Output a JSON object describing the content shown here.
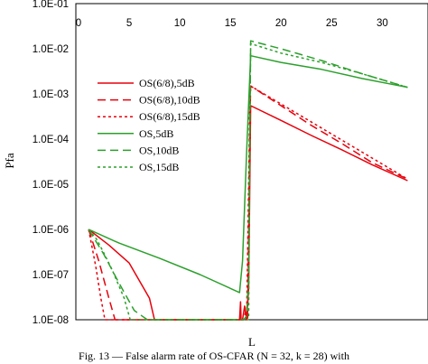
{
  "caption": "Fig. 13 — False alarm rate of OS-CFAR (N = 32, k = 28) with",
  "chart_data": {
    "type": "line",
    "title": "",
    "xlabel": "L",
    "ylabel": "Pfa",
    "xlim": [
      0,
      33
    ],
    "x_ticks": [
      0,
      5,
      10,
      15,
      20,
      25,
      30
    ],
    "x_tick_labels": [
      "0",
      "5",
      "10",
      "15",
      "20",
      "25",
      "30"
    ],
    "x_axis_position": "top",
    "y_scale": "log",
    "ylim": [
      1e-08,
      0.1
    ],
    "y_ticks": [
      1e-08,
      1e-07,
      1e-06,
      1e-05,
      0.0001,
      0.001,
      0.01,
      0.1
    ],
    "y_tick_labels": [
      "1.0E-08",
      "1.0E-07",
      "1.0E-06",
      "1.0E-05",
      "1.0E-04",
      "1.0E-03",
      "1.0E-02",
      "1.0E-01"
    ],
    "grid": false,
    "legend_position": "upper-left",
    "series": [
      {
        "name": "OS(6/8),5dB",
        "color": "#e8000b",
        "dash": "solid",
        "x": [
          1,
          3,
          5,
          7,
          7.5,
          15.9,
          16,
          16.05,
          16.2,
          16.4,
          16.6,
          16.8,
          17,
          20,
          23,
          26,
          29,
          32.5
        ],
        "y": [
          1e-06,
          4.5e-07,
          1.8e-07,
          3e-08,
          1e-08,
          1e-08,
          2.5e-08,
          1e-08,
          1e-08,
          2e-08,
          1e-08,
          5e-08,
          0.00055,
          0.00026,
          0.00012,
          5.8e-05,
          2.7e-05,
          1.2e-05
        ]
      },
      {
        "name": "OS(6/8),10dB",
        "color": "#e8000b",
        "dash": "dashed",
        "x": [
          1,
          2,
          3,
          3.6,
          16.3,
          16.5,
          16.7,
          16.9,
          17,
          20,
          23,
          26,
          29,
          32.5
        ],
        "y": [
          1e-06,
          2e-07,
          3e-08,
          1e-08,
          1e-08,
          1.5e-08,
          1e-08,
          0.0001,
          0.0015,
          0.00055,
          0.0002,
          8e-05,
          3e-05,
          1.3e-05
        ]
      },
      {
        "name": "OS(6/8),15dB",
        "color": "#e8000b",
        "dash": "dotted",
        "x": [
          1,
          1.7,
          2.2,
          2.6,
          16.6,
          16.8,
          16.9,
          17,
          32.5
        ],
        "y": [
          1e-06,
          1.5e-07,
          3e-08,
          1e-08,
          1e-08,
          1e-05,
          0.0005,
          0.0015,
          1.3e-05
        ]
      },
      {
        "name": "OS,5dB",
        "color": "#2ca02c",
        "dash": "solid",
        "x": [
          1,
          4,
          8,
          12,
          15.9,
          16.2,
          16.6,
          17,
          20,
          24,
          28,
          32.5
        ],
        "y": [
          1e-06,
          5e-07,
          2.3e-07,
          1e-07,
          4e-08,
          2e-07,
          5e-05,
          0.007,
          0.005,
          0.0035,
          0.0022,
          0.0014
        ]
      },
      {
        "name": "OS,10dB",
        "color": "#2ca02c",
        "dash": "dashed",
        "x": [
          1,
          2.5,
          4,
          5.5,
          6.8,
          16.3,
          16.6,
          16.8,
          17,
          20,
          24,
          28,
          32.5
        ],
        "y": [
          1e-06,
          2.8e-07,
          6.5e-08,
          1.6e-08,
          1e-08,
          1e-08,
          1.2e-08,
          1e-07,
          0.015,
          0.01,
          0.0055,
          0.0028,
          0.0014
        ]
      },
      {
        "name": "OS,15dB",
        "color": "#2ca02c",
        "dash": "dotted",
        "x": [
          1,
          1.8,
          2.5,
          3.3,
          4.5,
          5.1,
          16.6,
          16.8,
          16.9,
          17,
          20,
          24,
          28,
          32.5
        ],
        "y": [
          1e-06,
          6e-07,
          3e-07,
          1.3e-07,
          3e-08,
          1e-08,
          1e-08,
          1e-08,
          0.0001,
          0.013,
          0.008,
          0.005,
          0.0028,
          0.0014
        ]
      }
    ]
  }
}
